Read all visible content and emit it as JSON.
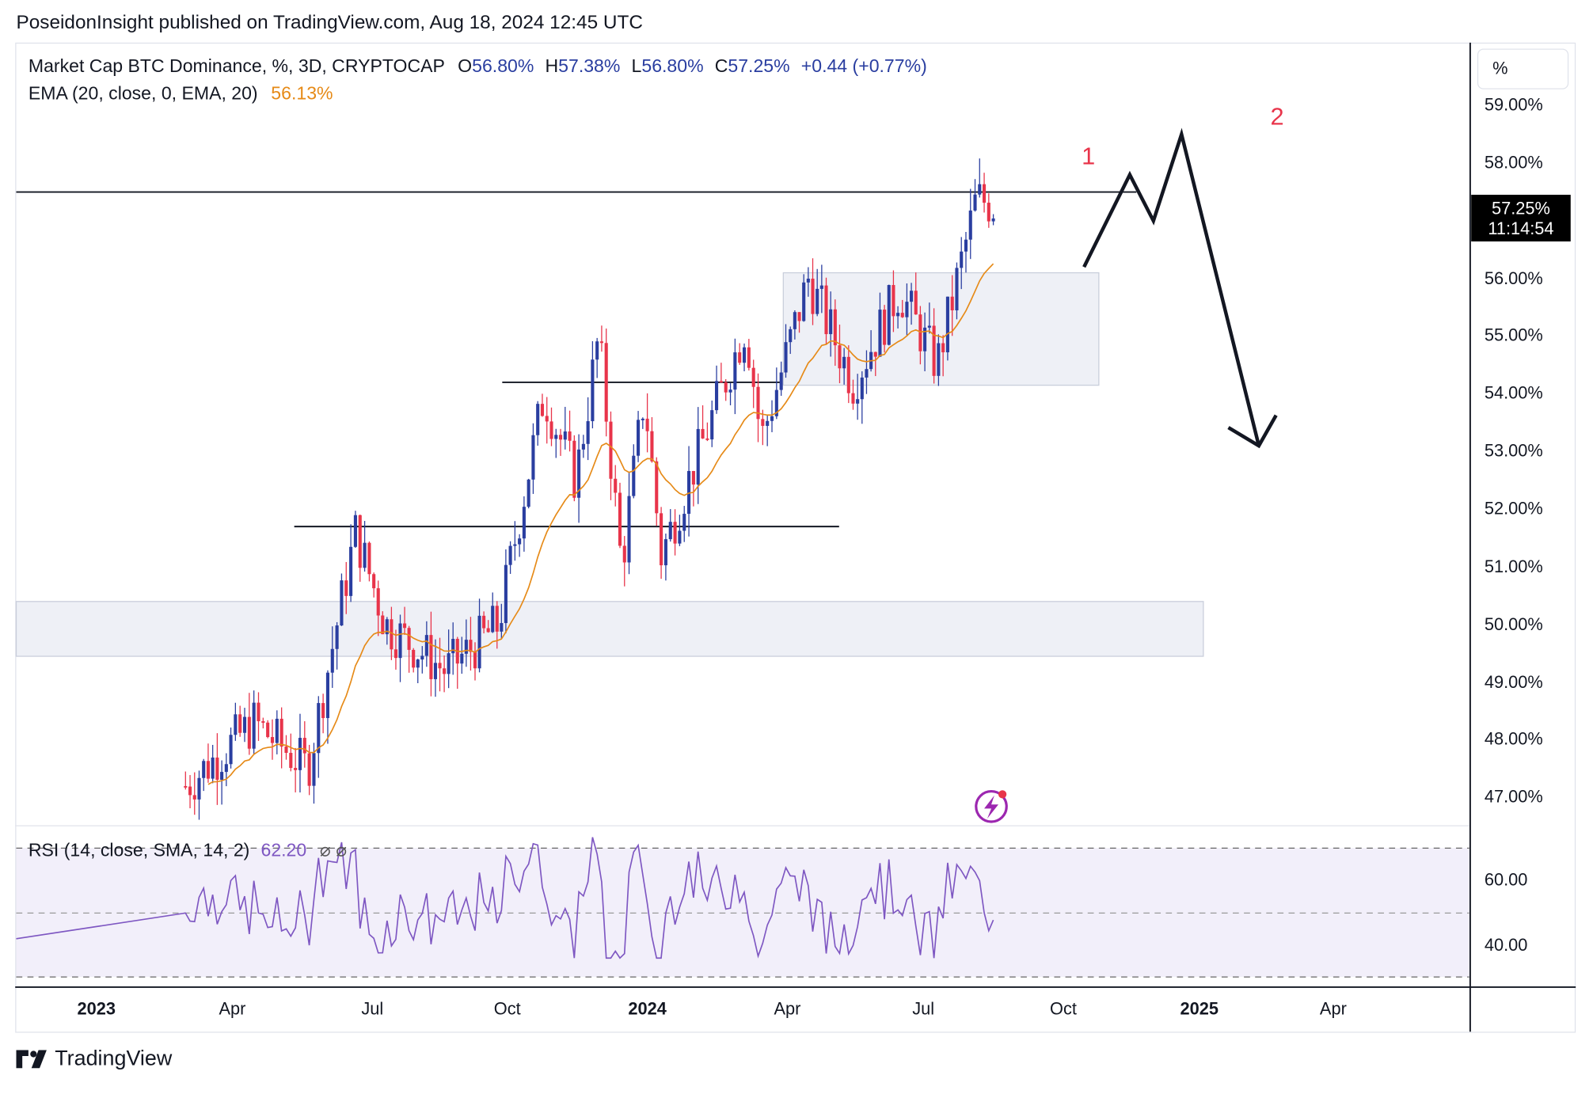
{
  "header": {
    "text": "PoseidonInsight published on TradingView.com, Aug 18, 2024 12:45 UTC"
  },
  "legend": {
    "symbol": "Market Cap BTC Dominance, %, 3D, CRYPTOCAP",
    "o_label": "O",
    "o": "56.80%",
    "h_label": "H",
    "h": "57.38%",
    "l_label": "L",
    "l": "56.80%",
    "c_label": "C",
    "c": "57.25%",
    "change": "+0.44 (+0.77%)",
    "ema_label": "EMA (20, close, 0, EMA, 20)",
    "ema_value": "56.13%",
    "rsi_label": "RSI (14, close, SMA, 14, 2)",
    "rsi_value": "62.20",
    "rsi_extra": "⌀ ⌀"
  },
  "axis": {
    "unit": "%",
    "price_tag": "57.25%",
    "countdown": "11:14:54",
    "y_ticks": [
      "59.00%",
      "58.00%",
      "56.00%",
      "55.00%",
      "54.00%",
      "53.00%",
      "52.00%",
      "51.00%",
      "50.00%",
      "49.00%",
      "48.00%",
      "47.00%"
    ],
    "rsi_ticks": [
      "60.00",
      "40.00"
    ],
    "x_ticks": [
      {
        "label": "2023",
        "bold": true
      },
      {
        "label": "Apr",
        "bold": false
      },
      {
        "label": "Jul",
        "bold": false
      },
      {
        "label": "Oct",
        "bold": false
      },
      {
        "label": "2024",
        "bold": true
      },
      {
        "label": "Apr",
        "bold": false
      },
      {
        "label": "Jul",
        "bold": false
      },
      {
        "label": "Oct",
        "bold": false
      },
      {
        "label": "2025",
        "bold": true
      },
      {
        "label": "Apr",
        "bold": false
      }
    ]
  },
  "annotations": {
    "wave1": "1",
    "wave2": "2"
  },
  "brand": {
    "name": "TradingView"
  },
  "colors": {
    "up": "#2a3ea0",
    "down": "#e8344a",
    "ema": "#e68a17",
    "rsi": "#7e57c2",
    "zone": "#eef0f6"
  },
  "chart_data": {
    "type": "candlestick",
    "ylim": [
      46.5,
      59.5
    ],
    "keyframes": [
      {
        "date": "2023-03-01",
        "value": 47.2
      },
      {
        "date": "2023-04-15",
        "value": 48.3
      },
      {
        "date": "2023-05-20",
        "value": 47.5
      },
      {
        "date": "2023-06-20",
        "value": 51.6
      },
      {
        "date": "2023-07-10",
        "value": 50.0
      },
      {
        "date": "2023-08-20",
        "value": 49.2
      },
      {
        "date": "2023-09-25",
        "value": 50.0
      },
      {
        "date": "2023-10-25",
        "value": 54.0
      },
      {
        "date": "2023-11-15",
        "value": 52.5
      },
      {
        "date": "2023-11-30",
        "value": 55.0
      },
      {
        "date": "2023-12-15",
        "value": 51.0
      },
      {
        "date": "2023-12-30",
        "value": 54.0
      },
      {
        "date": "2024-01-10",
        "value": 51.2
      },
      {
        "date": "2024-02-01",
        "value": 52.8
      },
      {
        "date": "2024-03-05",
        "value": 55.2
      },
      {
        "date": "2024-03-15",
        "value": 53.2
      },
      {
        "date": "2024-04-15",
        "value": 56.0
      },
      {
        "date": "2024-05-15",
        "value": 54.2
      },
      {
        "date": "2024-06-15",
        "value": 55.8
      },
      {
        "date": "2024-07-10",
        "value": 54.5
      },
      {
        "date": "2024-08-05",
        "value": 57.4
      },
      {
        "date": "2024-08-18",
        "value": 57.25
      }
    ],
    "ema_last": 56.13,
    "horizontal_levels": [
      57.5,
      54.2,
      51.7
    ],
    "zones": [
      {
        "from": 49.45,
        "to": 50.4
      },
      {
        "from": 54.15,
        "to": 56.1
      }
    ],
    "forecast_path": [
      {
        "date": "2024-10-15",
        "value": 56.2
      },
      {
        "date": "2024-11-15",
        "value": 57.8
      },
      {
        "date": "2024-12-01",
        "value": 57.0
      },
      {
        "date": "2024-12-20",
        "value": 58.5
      },
      {
        "date": "2025-02-10",
        "value": 53.1
      }
    ]
  }
}
